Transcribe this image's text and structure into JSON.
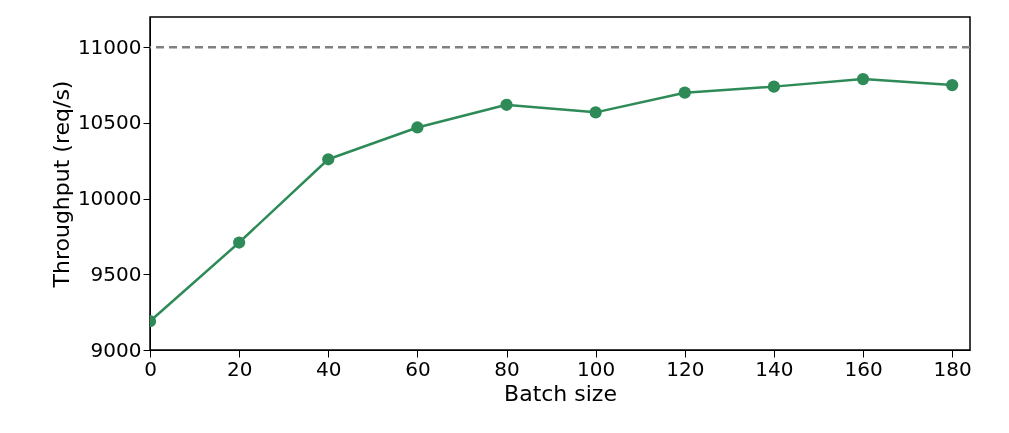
{
  "chart_data": {
    "type": "line",
    "xlabel": "Batch size",
    "ylabel": "Throughput (req/s)",
    "x": [
      0,
      20,
      40,
      60,
      80,
      100,
      120,
      140,
      160,
      180
    ],
    "series": [
      {
        "color": "#2e8b57",
        "values": [
          9190,
          9710,
          10260,
          10470,
          10620,
          10570,
          10700,
          10740,
          10790,
          10750
        ]
      }
    ],
    "xlim": [
      0,
      184
    ],
    "xticks": [
      0,
      20,
      40,
      60,
      80,
      100,
      120,
      140,
      160,
      180
    ],
    "ylim": [
      9000,
      11200
    ],
    "yticks": [
      9000,
      9500,
      10000,
      10500,
      11000
    ],
    "ref_lines": [
      {
        "axis": "y",
        "value": 11000,
        "color": "#808080",
        "line_style": "dashed"
      }
    ],
    "grid": false,
    "marker": "circle",
    "line_style": "solid"
  }
}
